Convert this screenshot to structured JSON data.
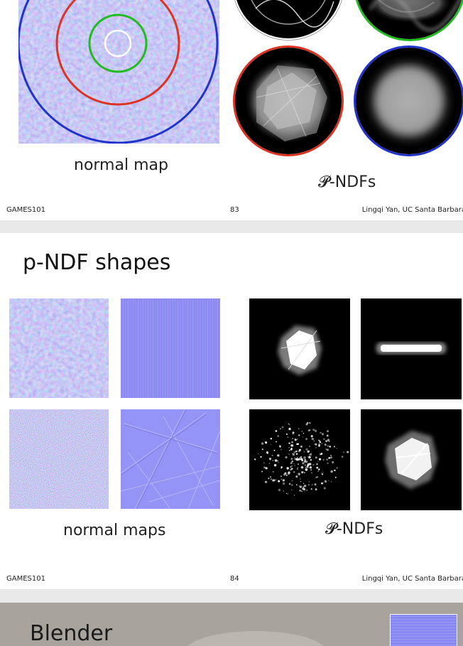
{
  "slide83": {
    "captions": {
      "left": "normal map",
      "right": "𝓟-NDFs"
    },
    "footer": {
      "left": "GAMES101",
      "page": "83",
      "right": "Lingqi Yan, UC Santa Barbara"
    },
    "ring_colors": [
      "#ffffff",
      "#22bb22",
      "#dd3322",
      "#2233cc"
    ]
  },
  "slide84": {
    "title": "p-NDF shapes",
    "captions": {
      "left": "normal maps",
      "right": "𝓟-NDFs"
    },
    "footer": {
      "left": "GAMES101",
      "page": "84",
      "right": "Lingqi Yan, UC Santa Barbara"
    }
  },
  "slide85": {
    "title": "Blender"
  },
  "colors": {
    "normal_map_base": "#8c8cf4",
    "background": "#e9e9e9"
  }
}
